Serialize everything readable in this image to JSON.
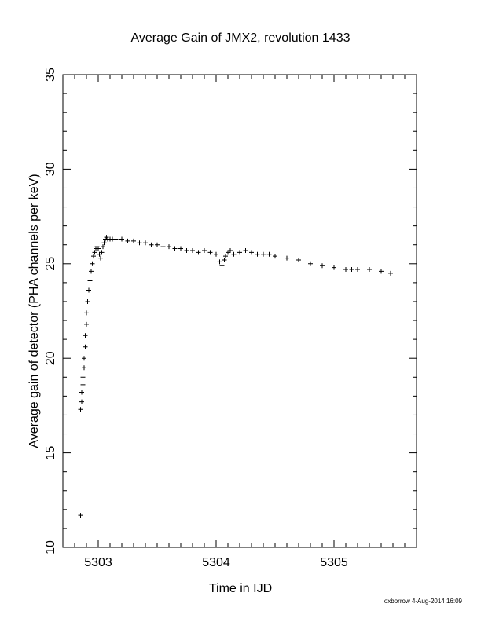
{
  "chart_data": {
    "type": "scatter",
    "title": "Average Gain of JMX2, revolution 1433",
    "xlabel": "Time in IJD",
    "ylabel": "Average gain of detector (PHA channels per keV)",
    "xlim": [
      5302.7,
      5305.7
    ],
    "ylim": [
      10,
      35
    ],
    "xticks": [
      5303,
      5304,
      5305
    ],
    "yticks": [
      10,
      15,
      20,
      25,
      30,
      35
    ],
    "xtick_labels": [
      "5303",
      "5304",
      "5305"
    ],
    "ytick_labels": [
      "10",
      "15",
      "20",
      "25",
      "30",
      "35"
    ],
    "grid": false,
    "marker": "+",
    "series": [
      {
        "x": [
          5302.85,
          5302.85,
          5302.86,
          5302.86,
          5302.87,
          5302.87,
          5302.88,
          5302.88,
          5302.89,
          5302.89,
          5302.9,
          5302.9,
          5302.91,
          5302.92,
          5302.93,
          5302.94,
          5302.95,
          5302.96,
          5302.97,
          5302.98,
          5302.99,
          5303.0,
          5303.01,
          5303.02,
          5303.03,
          5303.04,
          5303.05,
          5303.06,
          5303.07,
          5303.08,
          5303.1,
          5303.12,
          5303.15,
          5303.2,
          5303.25,
          5303.3,
          5303.35,
          5303.4,
          5303.45,
          5303.5,
          5303.55,
          5303.6,
          5303.65,
          5303.7,
          5303.75,
          5303.8,
          5303.85,
          5303.9,
          5303.95,
          5304.0,
          5304.03,
          5304.05,
          5304.07,
          5304.08,
          5304.1,
          5304.12,
          5304.15,
          5304.2,
          5304.25,
          5304.3,
          5304.35,
          5304.4,
          5304.45,
          5304.5,
          5304.6,
          5304.7,
          5304.8,
          5304.9,
          5305.0,
          5305.1,
          5305.15,
          5305.2,
          5305.3,
          5305.4,
          5305.48
        ],
        "y": [
          11.7,
          17.3,
          17.7,
          18.2,
          18.6,
          19.0,
          19.5,
          20.0,
          20.6,
          21.2,
          21.8,
          22.4,
          23.0,
          23.6,
          24.1,
          24.6,
          25.0,
          25.4,
          25.6,
          25.8,
          25.9,
          25.8,
          25.5,
          25.3,
          25.6,
          25.9,
          26.1,
          26.3,
          26.4,
          26.3,
          26.3,
          26.3,
          26.3,
          26.3,
          26.2,
          26.2,
          26.1,
          26.1,
          26.0,
          26.0,
          25.9,
          25.9,
          25.8,
          25.8,
          25.7,
          25.7,
          25.6,
          25.7,
          25.6,
          25.5,
          25.1,
          24.9,
          25.2,
          25.4,
          25.6,
          25.7,
          25.5,
          25.6,
          25.7,
          25.6,
          25.5,
          25.5,
          25.5,
          25.4,
          25.3,
          25.2,
          25.0,
          24.9,
          24.8,
          24.7,
          24.7,
          24.7,
          24.7,
          24.6,
          24.5
        ]
      }
    ]
  },
  "footer": {
    "stamp": "oxborrow  4-Aug-2014 16:09"
  }
}
